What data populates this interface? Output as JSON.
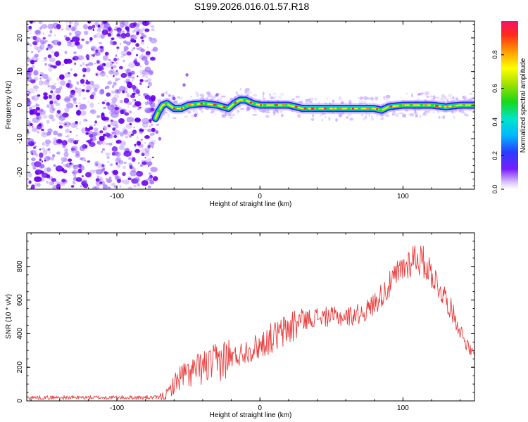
{
  "title": "S199.2026.016.01.57.R18",
  "colors": {
    "noise": "#8a4dff",
    "noise_dark": "#6a00f0",
    "snr_line": "#e83a3a"
  },
  "chart_data": [
    {
      "type": "heatmap",
      "name": "spectrogram",
      "xlabel": "Height of straight line (km)",
      "ylabel": "Frequency (Hz)",
      "xlim": [
        -163,
        150
      ],
      "ylim": [
        -25,
        25
      ],
      "xticks": [
        -100,
        0,
        100
      ],
      "yticks": [
        -20,
        -10,
        0,
        10,
        20
      ],
      "grid": false,
      "noise_region_x": [
        -163,
        -73
      ],
      "trace": {
        "x": [
          -73,
          -71,
          -68,
          -65,
          -60,
          -55,
          -50,
          -40,
          -30,
          -22,
          -18,
          -14,
          -10,
          -5,
          0,
          10,
          20,
          30,
          40,
          50,
          60,
          70,
          80,
          85,
          90,
          100,
          110,
          120,
          130,
          140,
          150
        ],
        "freq": [
          -4,
          -2,
          0,
          0.5,
          -1,
          -1,
          0,
          0.5,
          0,
          -1,
          0.5,
          1.5,
          1.5,
          0.5,
          0,
          0,
          0,
          -1,
          -1,
          -1,
          -1,
          -1,
          -1,
          -1.5,
          -0.5,
          0,
          0,
          0,
          -0.5,
          0,
          0
        ]
      },
      "colorbar": {
        "label": "Normalized spectral amplitude",
        "range": [
          0,
          1
        ],
        "ticks": [
          "0.0",
          "0.2",
          "0.4",
          "0.6",
          "0.8"
        ]
      }
    },
    {
      "type": "line",
      "name": "snr",
      "xlabel": "Height of straight line (km)",
      "ylabel": "SNR (10 * v/v)",
      "xlim": [
        -163,
        150
      ],
      "ylim": [
        0,
        1000
      ],
      "xticks": [
        -100,
        0,
        100
      ],
      "yticks": [
        0,
        200,
        400,
        600,
        800
      ],
      "grid": false,
      "series": [
        {
          "name": "SNR",
          "x": [
            -163,
            -140,
            -120,
            -100,
            -80,
            -70,
            -65,
            -60,
            -55,
            -50,
            -45,
            -40,
            -35,
            -30,
            -25,
            -20,
            -15,
            -10,
            -5,
            0,
            5,
            10,
            15,
            20,
            25,
            30,
            35,
            40,
            45,
            50,
            55,
            60,
            65,
            70,
            75,
            80,
            85,
            90,
            95,
            100,
            105,
            108,
            110,
            115,
            120,
            125,
            130,
            135,
            140,
            145,
            150
          ],
          "values": [
            20,
            20,
            20,
            20,
            20,
            20,
            40,
            100,
            150,
            160,
            180,
            200,
            210,
            230,
            250,
            260,
            270,
            300,
            310,
            330,
            360,
            380,
            400,
            430,
            460,
            480,
            490,
            500,
            500,
            500,
            500,
            500,
            510,
            520,
            540,
            580,
            630,
            680,
            740,
            790,
            830,
            860,
            850,
            820,
            760,
            680,
            610,
            520,
            420,
            330,
            260
          ]
        }
      ]
    }
  ]
}
